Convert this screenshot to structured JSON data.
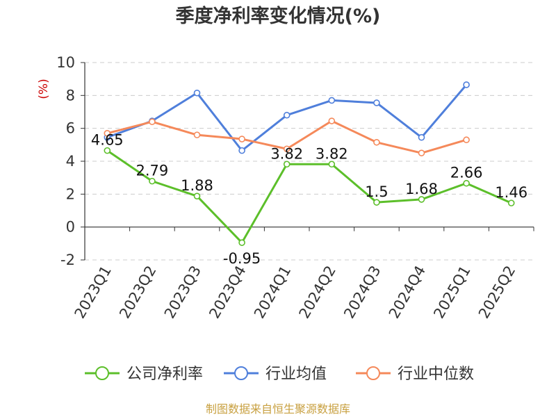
{
  "chart_data": {
    "type": "line",
    "title": "季度净利率变化情况(%)",
    "ylabel": "(%)",
    "xlabel": "",
    "ylim": [
      -2,
      10
    ],
    "yticks": [
      -2,
      0,
      2,
      4,
      6,
      8,
      10
    ],
    "grid": true,
    "legend_position": "bottom",
    "categories": [
      "2023Q1",
      "2023Q2",
      "2023Q3",
      "2023Q4",
      "2024Q1",
      "2024Q2",
      "2024Q3",
      "2024Q4",
      "2025Q1",
      "2025Q2"
    ],
    "series": [
      {
        "name": "公司净利率",
        "color": "#5cbf2a",
        "values": [
          4.65,
          2.79,
          1.88,
          -0.95,
          3.82,
          3.82,
          1.5,
          1.68,
          2.66,
          1.46
        ],
        "labels": [
          "4.65",
          "2.79",
          "1.88",
          "-0.95",
          "3.82",
          "3.82",
          "1.5",
          "1.68",
          "2.66",
          "1.46"
        ]
      },
      {
        "name": "行业均值",
        "color": "#4f7fdb",
        "values": [
          5.45,
          6.45,
          8.15,
          4.65,
          6.8,
          7.7,
          7.55,
          5.45,
          8.65,
          null
        ]
      },
      {
        "name": "行业中位数",
        "color": "#f5895a",
        "values": [
          5.7,
          6.4,
          5.6,
          5.35,
          4.75,
          6.45,
          5.15,
          4.5,
          5.3,
          null
        ]
      }
    ]
  },
  "colors": {
    "ylabel": "#cc0000",
    "source": "#c8a040"
  },
  "source": "制图数据来自恒生聚源数据库"
}
